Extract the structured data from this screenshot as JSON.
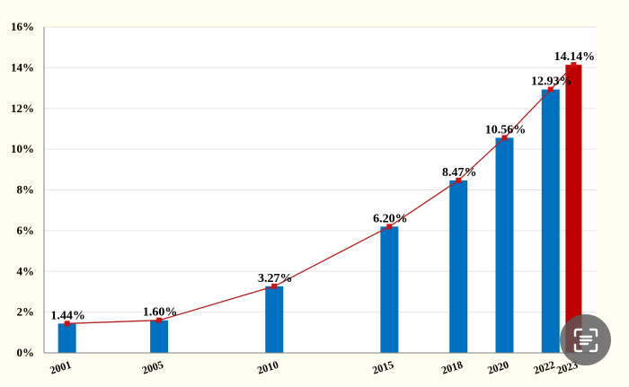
{
  "chart_data": {
    "type": "bar",
    "title": "",
    "xlabel": "",
    "ylabel": "",
    "categories": [
      "2001",
      "2005",
      "2010",
      "2015",
      "2018",
      "2020",
      "2022",
      "2023"
    ],
    "values": [
      1.44,
      1.6,
      3.27,
      6.2,
      8.47,
      10.56,
      12.93,
      14.14
    ],
    "data_labels": [
      "1.44%",
      "1.60%",
      "3.27%",
      "6.20%",
      "8.47%",
      "10.56%",
      "12.93%",
      "14.14%"
    ],
    "ylim": [
      0,
      16
    ],
    "y_ticks": [
      0,
      2,
      4,
      6,
      8,
      10,
      12,
      14,
      16
    ],
    "y_tick_labels": [
      "0%",
      "2%",
      "4%",
      "6%",
      "8%",
      "10%",
      "12%",
      "14%",
      "16%"
    ],
    "x_axis": "time",
    "x_range": [
      2000,
      2024
    ],
    "overlay_line": true,
    "grid": true,
    "legend": "none",
    "colors": {
      "bar": "#0070c0",
      "highlight_bar": "#c00000",
      "line": "#b22222",
      "marker": "#d01010",
      "grid": "#e6e6e6",
      "background": "#fffdf0",
      "plot_background": "#ffffff"
    },
    "highlight_category": "2023"
  },
  "overlay": {
    "icon": "image-search-icon"
  }
}
